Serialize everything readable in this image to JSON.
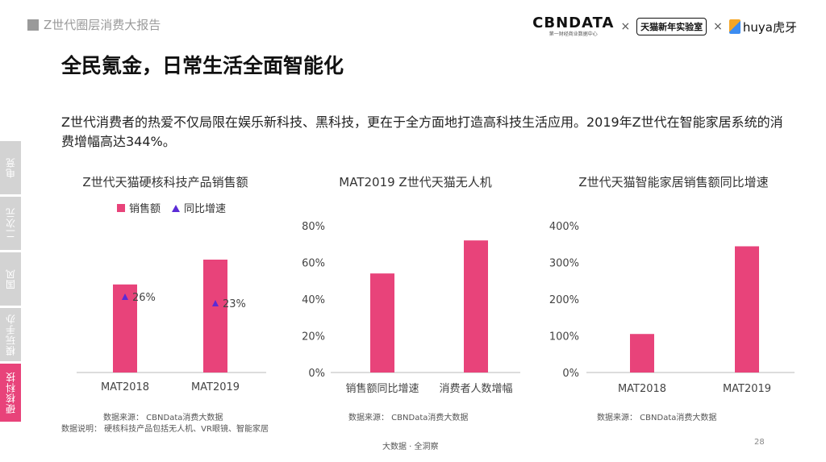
{
  "header": {
    "report_title": "Z世代圈层消费大报告",
    "logo_cbn": "CBNDATA",
    "logo_cbn_sub": "第一财经商业数据中心",
    "times": "×",
    "logo_tmall": "天猫新年实验室",
    "logo_huya": "huya虎牙"
  },
  "main_title": "全民氪金，日常生活全面智能化",
  "paragraph": "Z世代消费者的热爱不仅局限在娱乐新科技、黑科技，更在于全方面地打造高科技生活应用。2019年Z世代在智能家居系统的消费增幅高达344%。",
  "side_tabs": [
    "电竞",
    "二次元",
    "国风",
    "模玩手办",
    "硬核科技"
  ],
  "active_tab": "硬核科技",
  "colors": {
    "bar": "#e8437a",
    "marker": "#5b2bd6",
    "axis": "#bbbbbb"
  },
  "chart_data": [
    {
      "type": "bar",
      "title": "Z世代天猫硬核科技产品销售额",
      "categories": [
        "MAT2018",
        "MAT2019"
      ],
      "series": [
        {
          "name": "销售额",
          "values": [
            0.78,
            1.0
          ]
        },
        {
          "name": "同比增速",
          "values": [
            26,
            23
          ],
          "labels": [
            "26%",
            "23%"
          ],
          "marker": "triangle"
        }
      ],
      "legend": "top",
      "note_source": "数据来源： CBNData消费大数据",
      "note_desc": "数据说明： 硬核科技产品包括无人机、VR眼镜、智能家居"
    },
    {
      "type": "bar",
      "title": "MAT2019 Z世代天猫无人机",
      "categories": [
        "销售额同比增速",
        "消费者人数增幅"
      ],
      "values": [
        54,
        72
      ],
      "ylim": [
        0,
        80
      ],
      "yticks": [
        "0%",
        "20%",
        "40%",
        "60%",
        "80%"
      ],
      "note_source": "数据来源： CBNData消费大数据"
    },
    {
      "type": "bar",
      "title": "Z世代天猫智能家居销售额同比增速",
      "categories": [
        "MAT2018",
        "MAT2019"
      ],
      "values": [
        105,
        344
      ],
      "ylim": [
        0,
        400
      ],
      "yticks": [
        "0%",
        "100%",
        "200%",
        "300%",
        "400%"
      ],
      "note_source": "数据来源： CBNData消费大数据"
    }
  ],
  "footer": {
    "center": "大数据 · 全洞察",
    "page": "28"
  }
}
